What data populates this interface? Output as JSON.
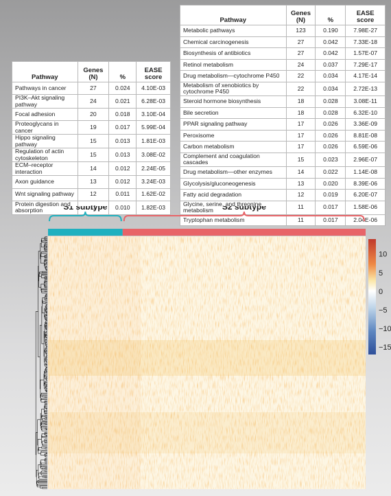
{
  "left_table": {
    "headers": {
      "pathway": "Pathway",
      "genes": "Genes (N)",
      "percent": "%",
      "ease": "EASE score"
    },
    "rows": [
      {
        "pathway": "Pathways in cancer",
        "genes": "27",
        "percent": "0.024",
        "ease": "4.10E-03"
      },
      {
        "pathway": "PI3K–Akt signaling pathway",
        "genes": "24",
        "percent": "0.021",
        "ease": "6.28E-03"
      },
      {
        "pathway": "Focal adhesion",
        "genes": "20",
        "percent": "0.018",
        "ease": "3.10E-04"
      },
      {
        "pathway": "Proteoglycans in cancer",
        "genes": "19",
        "percent": "0.017",
        "ease": "5.99E-04"
      },
      {
        "pathway": "Hippo signaling pathway",
        "genes": "15",
        "percent": "0.013",
        "ease": "1.81E-03"
      },
      {
        "pathway": "Regulation of actin cytoskeleton",
        "genes": "15",
        "percent": "0.013",
        "ease": "3.08E-02"
      },
      {
        "pathway": "ECM–receptor interaction",
        "genes": "14",
        "percent": "0.012",
        "ease": "2.24E-05"
      },
      {
        "pathway": "Axon guidance",
        "genes": "13",
        "percent": "0.012",
        "ease": "3.24E-03"
      },
      {
        "pathway": "Wnt signaling pathway",
        "genes": "12",
        "percent": "0.011",
        "ease": "1.62E-02"
      },
      {
        "pathway": "Protein digestion and absorption",
        "genes": "11",
        "percent": "0.010",
        "ease": "1.82E-03"
      }
    ]
  },
  "right_table": {
    "headers": {
      "pathway": "Pathway",
      "genes": "Genes (N)",
      "percent": "%",
      "ease": "EASE score"
    },
    "rows": [
      {
        "pathway": "Metabolic pathways",
        "genes": "123",
        "percent": "0.190",
        "ease": "7.98E-27"
      },
      {
        "pathway": "Chemical carcinogenesis",
        "genes": "27",
        "percent": "0.042",
        "ease": "7.33E-18"
      },
      {
        "pathway": "Biosynthesis of antibiotics",
        "genes": "27",
        "percent": "0.042",
        "ease": "1.57E-07"
      },
      {
        "pathway": "Retinol metabolism",
        "genes": "24",
        "percent": "0.037",
        "ease": "7.29E-17"
      },
      {
        "pathway": "Drug metabolism—cytochrome P450",
        "genes": "22",
        "percent": "0.034",
        "ease": "4.17E-14"
      },
      {
        "pathway": "Metabolism of xenobiotics by cytochrome P450",
        "genes": "22",
        "percent": "0.034",
        "ease": "2.72E-13"
      },
      {
        "pathway": "Steroid hormone biosynthesis",
        "genes": "18",
        "percent": "0.028",
        "ease": "3.08E-11"
      },
      {
        "pathway": "Bile secretion",
        "genes": "18",
        "percent": "0.028",
        "ease": "6.32E-10"
      },
      {
        "pathway": "PPAR signaling pathway",
        "genes": "17",
        "percent": "0.026",
        "ease": "3.36E-09"
      },
      {
        "pathway": "Peroxisome",
        "genes": "17",
        "percent": "0.026",
        "ease": "8.81E-08"
      },
      {
        "pathway": "Carbon metabolism",
        "genes": "17",
        "percent": "0.026",
        "ease": "6.59E-06"
      },
      {
        "pathway": "Complement and coagulation cascades",
        "genes": "15",
        "percent": "0.023",
        "ease": "2.96E-07"
      },
      {
        "pathway": "Drug metabolism—other enzymes",
        "genes": "14",
        "percent": "0.022",
        "ease": "1.14E-08"
      },
      {
        "pathway": "Glycolysis/gluconeogenesis",
        "genes": "13",
        "percent": "0.020",
        "ease": "8.39E-06"
      },
      {
        "pathway": "Fatty acid degradation",
        "genes": "12",
        "percent": "0.019",
        "ease": "6.20E-07"
      },
      {
        "pathway": "Glycine, serine, and threonine metabolism",
        "genes": "11",
        "percent": "0.017",
        "ease": "1.58E-06"
      },
      {
        "pathway": "Tryptophan metabolism",
        "genes": "11",
        "percent": "0.017",
        "ease": "2.04E-06"
      }
    ]
  },
  "subtypes": [
    {
      "label": "S1 subtype",
      "color": "#1fb0bf",
      "fraction": 0.235
    },
    {
      "label": "S2 subtype",
      "color": "#e86468",
      "fraction": 0.765
    }
  ],
  "chart_data": {
    "type": "heatmap",
    "color_scale": {
      "low": "#2e4f9a",
      "mid": "#ffffff",
      "high": "#c0392b",
      "range": [
        -17,
        14
      ]
    },
    "colorbar_ticks": [
      "10",
      "5",
      "0",
      "−5",
      "−10",
      "−15"
    ],
    "colorbar_tick_values": [
      10,
      5,
      0,
      -5,
      -10,
      -15
    ]
  }
}
